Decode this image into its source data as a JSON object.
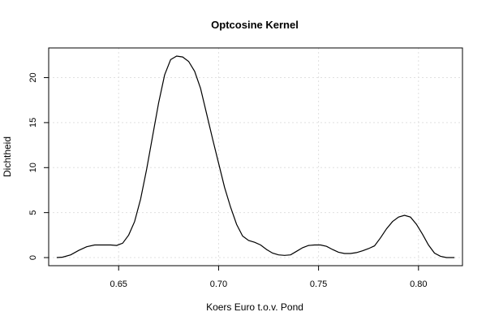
{
  "chart_data": {
    "type": "line",
    "title": "Optcosine Kernel",
    "xlabel": "Koers Euro t.o.v. Pond",
    "ylabel": "Dichtheid",
    "xlim": [
      0.615,
      0.822
    ],
    "ylim": [
      -0.9,
      23.3
    ],
    "grid": true,
    "legend": "none",
    "x_ticks": [
      0.65,
      0.7,
      0.75,
      0.8
    ],
    "x_tick_labels": [
      "0.65",
      "0.70",
      "0.75",
      "0.80"
    ],
    "y_ticks": [
      0,
      5,
      10,
      15,
      20
    ],
    "y_tick_labels": [
      "0",
      "5",
      "10",
      "15",
      "20"
    ],
    "series": [
      {
        "color": "#000000",
        "x": [
          0.619,
          0.622,
          0.626,
          0.63,
          0.634,
          0.638,
          0.642,
          0.646,
          0.649,
          0.652,
          0.655,
          0.658,
          0.661,
          0.664,
          0.667,
          0.67,
          0.673,
          0.676,
          0.679,
          0.682,
          0.685,
          0.688,
          0.691,
          0.694,
          0.697,
          0.7,
          0.703,
          0.706,
          0.709,
          0.712,
          0.715,
          0.718,
          0.721,
          0.724,
          0.727,
          0.73,
          0.733,
          0.736,
          0.739,
          0.742,
          0.745,
          0.748,
          0.751,
          0.754,
          0.757,
          0.76,
          0.763,
          0.766,
          0.769,
          0.772,
          0.775,
          0.778,
          0.781,
          0.784,
          0.787,
          0.79,
          0.793,
          0.796,
          0.799,
          0.802,
          0.805,
          0.808,
          0.811,
          0.814,
          0.818
        ],
        "y": [
          0.0,
          0.05,
          0.3,
          0.8,
          1.2,
          1.4,
          1.4,
          1.4,
          1.35,
          1.6,
          2.5,
          4.0,
          6.5,
          9.8,
          13.5,
          17.2,
          20.3,
          22.0,
          22.4,
          22.3,
          21.8,
          20.7,
          18.8,
          16.0,
          13.2,
          10.5,
          7.8,
          5.6,
          3.7,
          2.4,
          1.9,
          1.7,
          1.4,
          0.9,
          0.5,
          0.3,
          0.25,
          0.3,
          0.7,
          1.1,
          1.35,
          1.4,
          1.4,
          1.25,
          0.9,
          0.6,
          0.45,
          0.45,
          0.55,
          0.75,
          1.0,
          1.3,
          2.2,
          3.2,
          4.0,
          4.5,
          4.7,
          4.5,
          3.7,
          2.6,
          1.4,
          0.5,
          0.15,
          0.0,
          0.0
        ]
      }
    ]
  }
}
